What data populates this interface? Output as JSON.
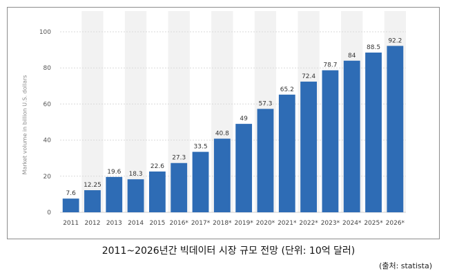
{
  "chart_data": {
    "type": "bar",
    "categories": [
      "2011",
      "2012",
      "2013",
      "2014",
      "2015",
      "2016*",
      "2017*",
      "2018*",
      "2019*",
      "2020*",
      "2021*",
      "2022*",
      "2023*",
      "2024*",
      "2025*",
      "2026*"
    ],
    "values": [
      7.6,
      12.25,
      19.6,
      18.3,
      22.6,
      27.3,
      33.5,
      40.8,
      49,
      57.3,
      65.2,
      72.4,
      78.7,
      84,
      88.5,
      92.2
    ],
    "value_labels": [
      "7.6",
      "12.25",
      "19.6",
      "18.3",
      "22.6",
      "27.3",
      "33.5",
      "40.8",
      "49",
      "57.3",
      "65.2",
      "72.4",
      "78.7",
      "84",
      "88.5",
      "92.2"
    ],
    "ylabel": "Market volume in billion U.S. dollars",
    "ylim": [
      0,
      100
    ],
    "yticks": [
      0,
      20,
      40,
      60,
      80,
      100
    ],
    "grid": true,
    "bar_color": "#2e6cb5",
    "band_color": "#f2f2f2"
  },
  "caption": "2011~2026년간 빅데이터 시장 규모 전망 (단위: 10억 달러)",
  "source": "(출처: statista)"
}
